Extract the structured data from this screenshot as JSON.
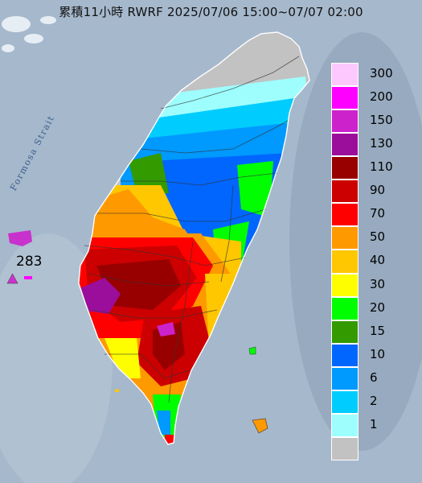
{
  "title": "累積11小時 RWRF 2025/07/06 15:00~07/07 02:00",
  "sea_label": "Formosa Strait",
  "max_marker": {
    "value": "283",
    "color": "#cc33cc"
  },
  "legend": [
    {
      "label": "300",
      "color": "#fdc8fd"
    },
    {
      "label": "200",
      "color": "#fe00fe"
    },
    {
      "label": "150",
      "color": "#cc22cc"
    },
    {
      "label": "130",
      "color": "#9b0e9b"
    },
    {
      "label": "110",
      "color": "#980000"
    },
    {
      "label": "90",
      "color": "#cc0000"
    },
    {
      "label": "70",
      "color": "#fe0000"
    },
    {
      "label": "50",
      "color": "#fe9900"
    },
    {
      "label": "40",
      "color": "#fec700"
    },
    {
      "label": "30",
      "color": "#fefe00"
    },
    {
      "label": "20",
      "color": "#00fe00"
    },
    {
      "label": "15",
      "color": "#339a00"
    },
    {
      "label": "10",
      "color": "#0066fe"
    },
    {
      "label": "6",
      "color": "#0099fe"
    },
    {
      "label": "2",
      "color": "#00ccfe"
    },
    {
      "label": "1",
      "color": "#9efefe"
    },
    {
      "label": "",
      "color": "#c2c2c2"
    }
  ]
}
